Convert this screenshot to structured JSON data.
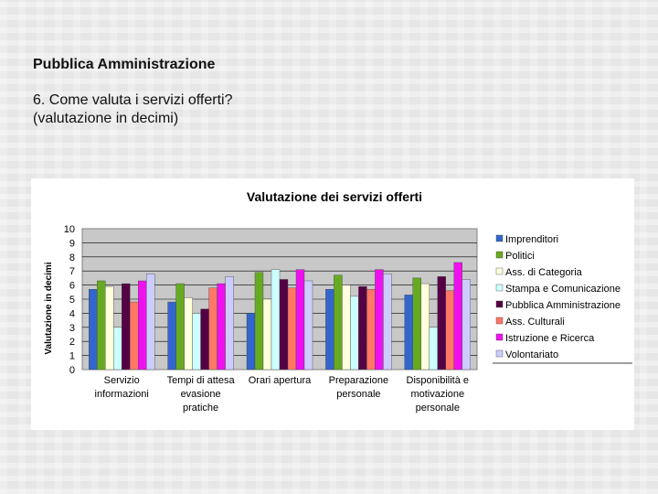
{
  "slide": {
    "heading": "Pubblica Amministrazione",
    "question_line1": "6. Come valuta i servizi offerti?",
    "question_line2": "(valutazione in decimi)"
  },
  "chart_data": {
    "type": "bar",
    "title": "Valutazione dei servizi offerti",
    "ylabel": "Valutazione in decimi",
    "xlabel": "",
    "ylim": [
      0,
      10
    ],
    "yticks": [
      "0",
      "1",
      "2",
      "3",
      "4",
      "5",
      "6",
      "7",
      "8",
      "9",
      "10"
    ],
    "grid": true,
    "legend_position": "right",
    "categories": [
      [
        "Servizio",
        "informazioni"
      ],
      [
        "Tempi di attesa",
        "evasione",
        "pratiche"
      ],
      [
        "Orari apertura"
      ],
      [
        "Preparazione",
        "personale"
      ],
      [
        "Disponibilità e",
        "motivazione",
        "personale"
      ]
    ],
    "series": [
      {
        "name": "Imprenditori",
        "color": "#3366cc",
        "values": [
          5.7,
          4.8,
          4.0,
          5.7,
          5.3
        ]
      },
      {
        "name": "Politici",
        "color": "#66aa22",
        "values": [
          6.3,
          6.1,
          6.9,
          6.7,
          6.5
        ]
      },
      {
        "name": "Ass. di Categoria",
        "color": "#ffffdd",
        "values": [
          5.9,
          5.1,
          5.0,
          6.0,
          6.1
        ]
      },
      {
        "name": "Stampa e Comunicazione",
        "color": "#ccffff",
        "values": [
          3.0,
          4.0,
          7.1,
          5.2,
          3.0
        ]
      },
      {
        "name": "Pubblica Amministrazione",
        "color": "#550044",
        "values": [
          6.1,
          4.3,
          6.4,
          5.9,
          6.6
        ]
      },
      {
        "name": "Ass. Culturali",
        "color": "#ff7766",
        "values": [
          4.8,
          5.8,
          5.8,
          5.7,
          5.6
        ]
      },
      {
        "name": "Istruzione e Ricerca",
        "color": "#ee11ee",
        "values": [
          6.3,
          6.1,
          7.1,
          7.1,
          7.6
        ]
      },
      {
        "name": "Volontariato",
        "color": "#ccccff",
        "values": [
          6.8,
          6.6,
          6.3,
          6.8,
          6.4
        ]
      }
    ]
  }
}
